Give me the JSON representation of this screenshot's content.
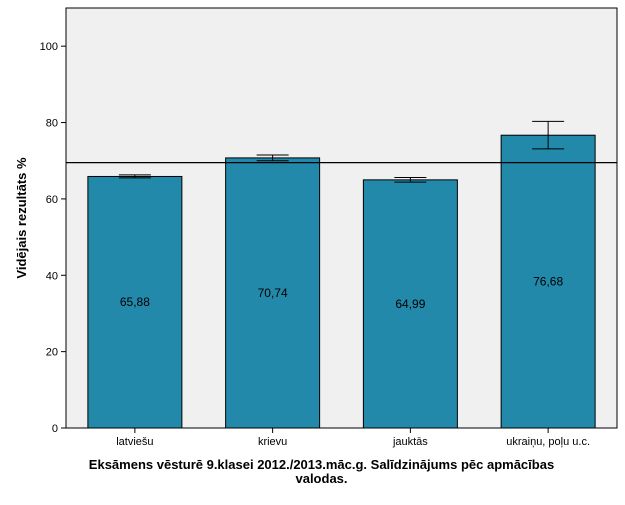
{
  "chart_data": {
    "type": "bar",
    "categories": [
      "latviešu",
      "krievu",
      "jauktās",
      "ukraiņu, poļu u.c."
    ],
    "values": [
      65.88,
      70.74,
      64.99,
      76.68
    ],
    "value_labels": [
      "65,88",
      "70,74",
      "64,99",
      "76,68"
    ],
    "error_bars": [
      {
        "low": 65.5,
        "high": 66.3
      },
      {
        "low": 70.0,
        "high": 71.5
      },
      {
        "low": 64.4,
        "high": 65.6
      },
      {
        "low": 73.1,
        "high": 80.3
      }
    ],
    "reference_line": 69.5,
    "ylim": [
      0,
      110
    ],
    "yticks": [
      0,
      20,
      40,
      60,
      80,
      100
    ],
    "ylabel": "Vidējais rezultāts %",
    "xlabel_line1": "Eksāmens vēsturē 9.klasei 2012./2013.māc.g. Salīdzinājums pēc apmācības",
    "xlabel_line2": "valodas.",
    "title": "",
    "bar_color": "#2389ab",
    "plot_background": "#f0f0f0",
    "grid": false
  }
}
